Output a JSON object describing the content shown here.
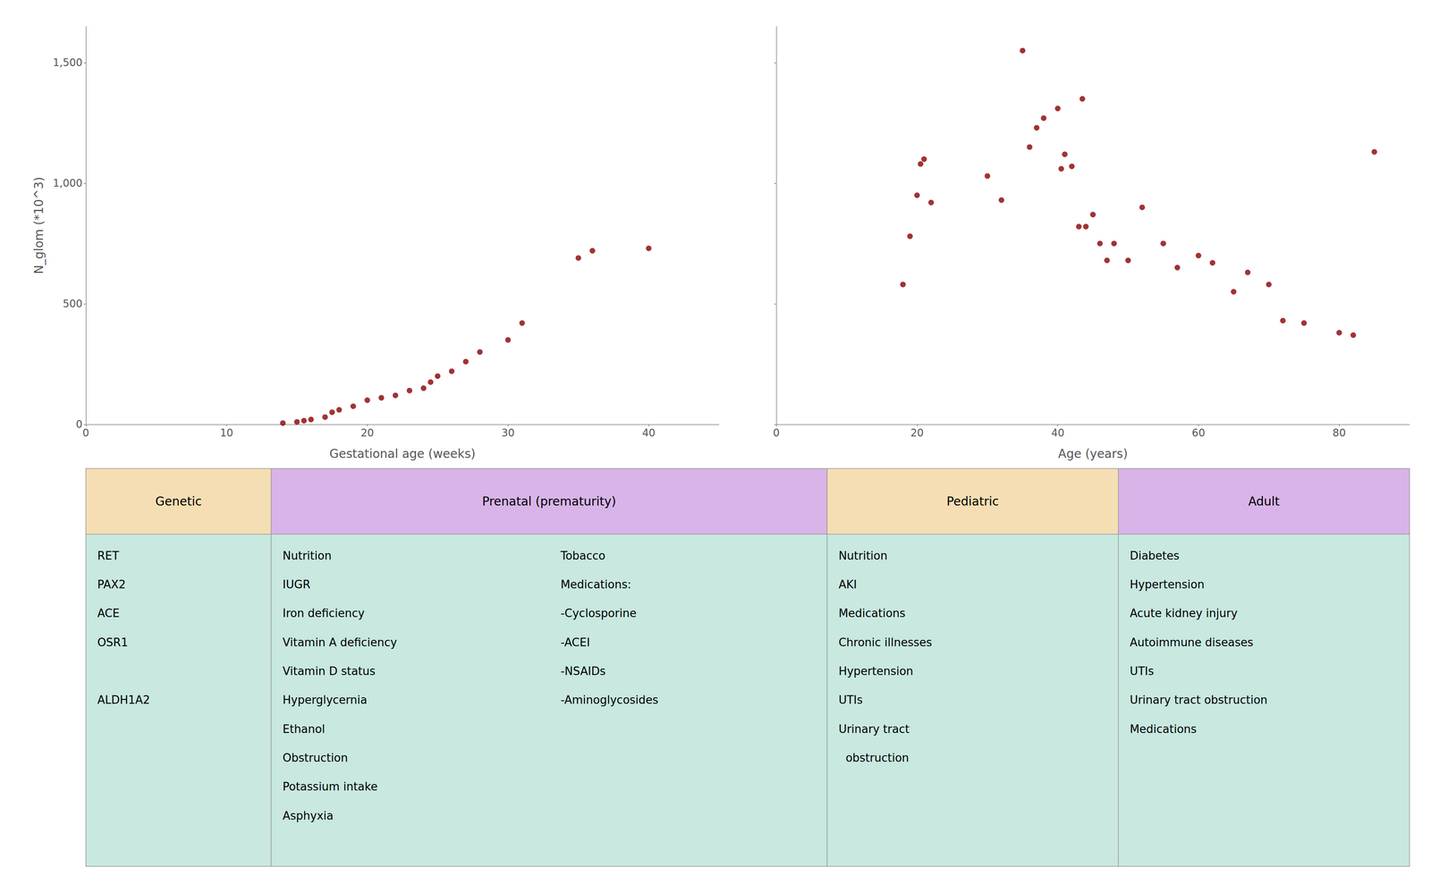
{
  "chart_data": [
    {
      "type": "scatter",
      "x": [
        14,
        15,
        15.5,
        16,
        17,
        17.5,
        18,
        19,
        20,
        21,
        22,
        23,
        24,
        24.5,
        25,
        26,
        27,
        28,
        30,
        31,
        35,
        36,
        40
      ],
      "values": [
        5,
        10,
        15,
        20,
        30,
        50,
        60,
        75,
        100,
        110,
        120,
        140,
        150,
        175,
        200,
        220,
        260,
        300,
        350,
        420,
        690,
        720,
        730
      ],
      "xlabel": "Gestational age (weeks)",
      "ylabel": "N_glom (*10^3)",
      "xlim": [
        0,
        45
      ],
      "ylim": [
        0,
        1650
      ],
      "xticks": [
        0,
        10,
        20,
        30,
        40
      ],
      "yticks": [
        0,
        500,
        1000,
        1500
      ],
      "color": "#8B0000",
      "marker": "circle",
      "grid": false
    },
    {
      "type": "scatter",
      "x": [
        18,
        19,
        20,
        20.5,
        21,
        22,
        30,
        32,
        35,
        36,
        37,
        38,
        40,
        40.5,
        41,
        42,
        43,
        43.5,
        44,
        45,
        46,
        47,
        48,
        50,
        52,
        55,
        57,
        60,
        62,
        65,
        67,
        70,
        72,
        75,
        80,
        82,
        85
      ],
      "values": [
        580,
        780,
        950,
        1080,
        1100,
        920,
        1030,
        930,
        1550,
        1150,
        1230,
        1270,
        1310,
        1060,
        1120,
        1070,
        820,
        1350,
        820,
        870,
        750,
        680,
        750,
        680,
        900,
        750,
        650,
        700,
        670,
        550,
        630,
        580,
        430,
        420,
        380,
        370,
        1130
      ],
      "xlabel": "Age (years)",
      "xlim": [
        0,
        90
      ],
      "ylim": [
        0,
        1650
      ],
      "xticks": [
        0,
        20,
        40,
        60,
        80
      ],
      "yticks": [
        0,
        500,
        1000,
        1500
      ],
      "color": "#8B0000",
      "marker": "circle",
      "grid": false,
      "tick_labels": "x"
    },
    {
      "type": "table",
      "color": "#C8E8E0",
      "series": [
        {
          "name": "Genetic",
          "color": "#F5DEB3",
          "values": [
            [
              "RET",
              "PAX2",
              "ACE",
              "OSR1",
              null,
              "ALDH1A2"
            ]
          ]
        },
        {
          "name": "Prenatal (prematurity)",
          "color": "#D8B4E8",
          "values": [
            [
              "Nutrition",
              "IUGR",
              "Iron deficiency",
              "Vitamin A deficiency",
              "Vitamin D status",
              "Hyperglycernia",
              "Ethanol",
              "Obstruction",
              "Potassium intake",
              "Asphyxia"
            ],
            [
              "Tobacco",
              "Medications:",
              "-Cyclosporine",
              "-ACEI",
              "-NSAIDs",
              "-Aminoglycosides"
            ]
          ]
        },
        {
          "name": "Pediatric",
          "color": "#F5DEB3",
          "values": [
            [
              "Nutrition",
              "AKI",
              "Medications",
              "Chronic illnesses",
              "Hypertension",
              "UTIs",
              "Urinary tract",
              "  obstruction"
            ]
          ]
        },
        {
          "name": "Adult",
          "color": "#D8B4E8",
          "values": [
            [
              "Diabetes",
              "Hypertension",
              "Acute kidney injury",
              "Autoimmune diseases",
              "UTIs",
              "Urinary tract obstruction",
              "Medications"
            ]
          ]
        }
      ]
    }
  ]
}
